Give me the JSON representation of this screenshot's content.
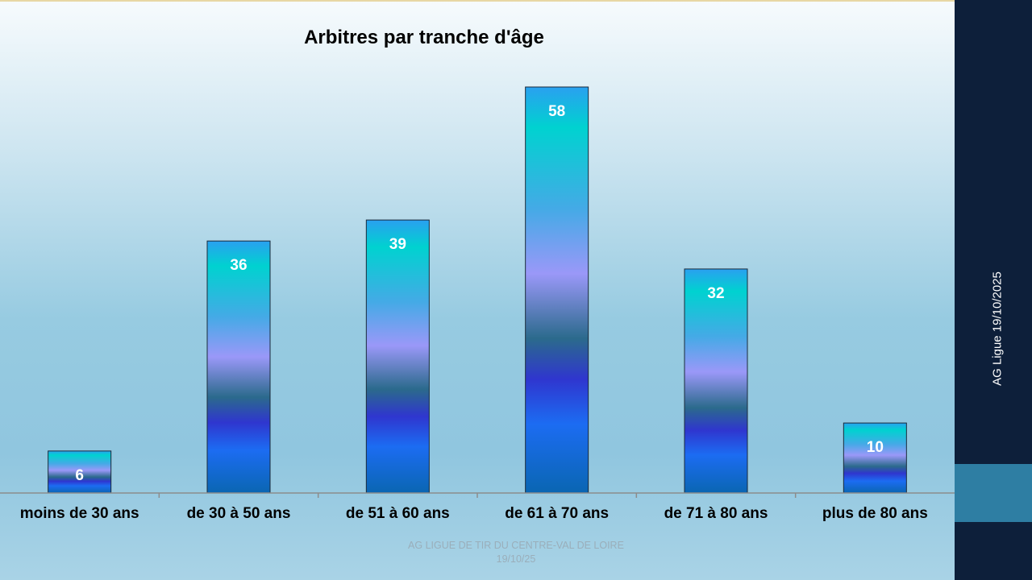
{
  "colors": {
    "sidebar": "#0d1f3a",
    "sidebar_accent": "#2e7ea3",
    "axis": "#8c8c8c",
    "bar_gradient": [
      "#2aa0f0",
      "#00d2d0",
      "#44aae6",
      "#9a98f8",
      "#2b6a8c",
      "#2f36cf",
      "#1c6cf2",
      "#0a66b2"
    ]
  },
  "sidebar": {
    "date_text": "AG Ligue 19/10/2025"
  },
  "footer": {
    "line1": "AG LIGUE DE TIR DU CENTRE-VAL DE LOIRE",
    "line2": "19/10/25"
  },
  "chart_data": {
    "type": "bar",
    "title": "Arbitres par tranche d'âge",
    "xlabel": "",
    "ylabel": "",
    "categories": [
      "moins de 30 ans",
      "de 30 à 50 ans",
      "de 51 à 60 ans",
      "de 61 à 70 ans",
      "de 71 à 80 ans",
      "plus de 80 ans"
    ],
    "values": [
      6,
      36,
      39,
      58,
      32,
      10
    ],
    "data_labels": [
      "6",
      "36",
      "39",
      "58",
      "32",
      "10"
    ],
    "ylim": [
      0,
      58
    ],
    "grid": false,
    "legend": "none"
  }
}
